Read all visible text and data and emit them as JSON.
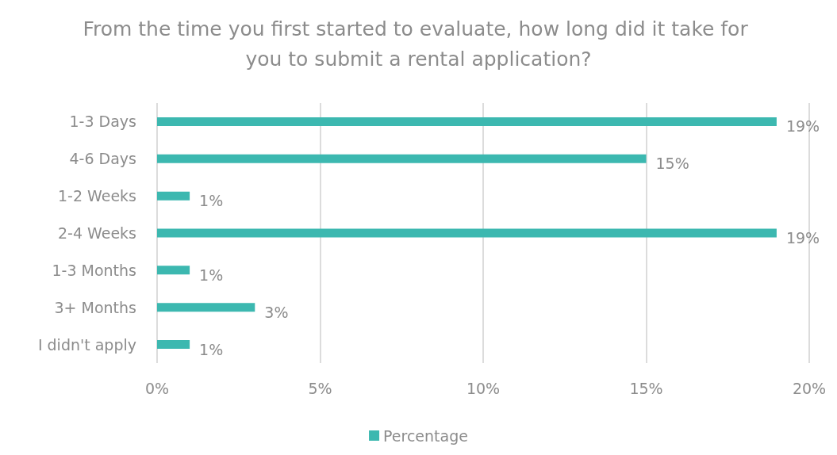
{
  "chart_data": {
    "type": "bar",
    "orientation": "horizontal",
    "title": "From the time you first started to evaluate, how long did it take for you to submit a rental application?",
    "categories": [
      "1-3 Days",
      "4-6 Days",
      "1-2 Weeks",
      "2-4 Weeks",
      "1-3 Months",
      "3+ Months",
      "I didn't apply"
    ],
    "series": [
      {
        "name": "Percentage",
        "color": "#3cb8b0",
        "values": [
          19,
          15,
          1,
          19,
          1,
          3,
          1
        ],
        "value_labels": [
          "19%",
          "15%",
          "1%",
          "19%",
          "1%",
          "3%",
          "1%"
        ]
      }
    ],
    "xlim": [
      0,
      20
    ],
    "xticks": [
      {
        "value": 0,
        "label": "0%"
      },
      {
        "value": 5,
        "label": "5%"
      },
      {
        "value": 10,
        "label": "10%"
      },
      {
        "value": 15,
        "label": "15%"
      },
      {
        "value": 20,
        "label": "20%"
      }
    ],
    "grid": "x",
    "legend": "bottom"
  }
}
